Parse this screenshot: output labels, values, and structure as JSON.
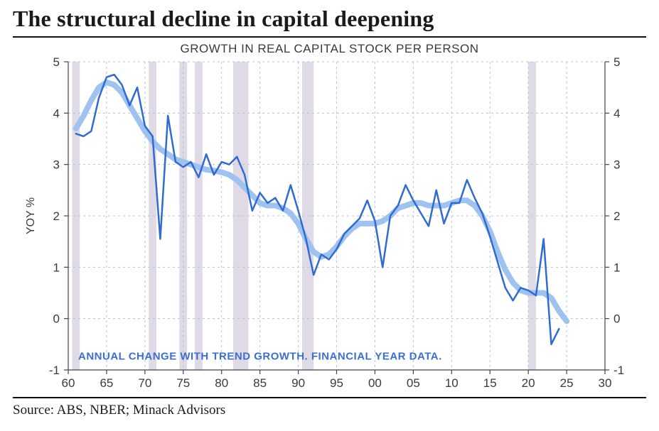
{
  "page": {
    "title": "The structural decline in capital deepening",
    "source": "Source: ABS, NBER; Minack Advisors"
  },
  "chart": {
    "type": "line",
    "subtitle": "GROWTH IN REAL CAPITAL STOCK PER PERSON",
    "y_axis_label": "YOY %",
    "legend_note": "ANNUAL CHANGE WITH TREND GROWTH.  FINANCIAL YEAR DATA.",
    "x": {
      "min": 60,
      "max": 30,
      "ticks": [
        60,
        65,
        70,
        75,
        80,
        85,
        90,
        95,
        0,
        5,
        10,
        15,
        20,
        25,
        30
      ],
      "tick_labels": [
        "60",
        "65",
        "70",
        "75",
        "80",
        "85",
        "90",
        "95",
        "00",
        "05",
        "10",
        "15",
        "20",
        "25",
        "30"
      ]
    },
    "y": {
      "min": -1,
      "max": 5,
      "ticks": [
        -1,
        0,
        1,
        2,
        3,
        4,
        5
      ]
    },
    "styling": {
      "background_color": "#ffffff",
      "grid_color": "#b8c2d1",
      "grid_dash": "3,4",
      "axis_color": "#444444",
      "recession_band_color": "#d9d3e0",
      "recession_band_opacity": 0.85,
      "trend_line_color": "#9ec3f0",
      "trend_line_width": 8,
      "series_line_color": "#2f6bd0",
      "series_line_width": 2.5,
      "tick_font_size": 17,
      "subtitle_font_size": 17,
      "note_font_size": 15,
      "title_font_size": 32
    },
    "recession_bands_x": [
      [
        60.5,
        61.5
      ],
      [
        70.5,
        71.5
      ],
      [
        74.5,
        75.5
      ],
      [
        76.5,
        77.5
      ],
      [
        81.5,
        83.5
      ],
      [
        90.5,
        92.0
      ],
      [
        120.0,
        121.0
      ]
    ],
    "series": {
      "x": [
        61,
        62,
        63,
        64,
        65,
        66,
        67,
        68,
        69,
        70,
        71,
        72,
        73,
        74,
        75,
        76,
        77,
        78,
        79,
        80,
        81,
        82,
        83,
        84,
        85,
        86,
        87,
        88,
        89,
        90,
        91,
        92,
        93,
        94,
        95,
        96,
        97,
        98,
        99,
        100,
        101,
        102,
        103,
        104,
        105,
        106,
        107,
        108,
        109,
        110,
        111,
        112,
        113,
        114,
        115,
        116,
        117,
        118,
        119,
        120,
        121,
        122,
        123,
        124
      ],
      "y": [
        3.6,
        3.55,
        3.65,
        4.3,
        4.7,
        4.75,
        4.55,
        4.15,
        4.5,
        3.75,
        3.55,
        1.55,
        3.95,
        3.05,
        2.95,
        3.05,
        2.75,
        3.2,
        2.8,
        3.05,
        3.0,
        3.15,
        2.8,
        2.1,
        2.45,
        2.25,
        2.35,
        2.1,
        2.6,
        2.1,
        1.55,
        0.85,
        1.25,
        1.15,
        1.35,
        1.65,
        1.8,
        1.95,
        2.3,
        1.9,
        1.0,
        2.0,
        2.2,
        2.6,
        2.3,
        2.05,
        1.8,
        2.5,
        1.85,
        2.25,
        2.25,
        2.7,
        2.35,
        2.05,
        1.6,
        1.1,
        0.6,
        0.35,
        0.6,
        0.55,
        0.45,
        1.55,
        -0.5,
        -0.2
      ]
    },
    "trend": {
      "x": [
        61,
        62,
        63,
        64,
        65,
        66,
        67,
        68,
        69,
        70,
        71,
        72,
        73,
        74,
        75,
        76,
        77,
        78,
        79,
        80,
        81,
        82,
        83,
        84,
        85,
        86,
        87,
        88,
        89,
        90,
        91,
        92,
        93,
        94,
        95,
        96,
        97,
        98,
        99,
        100,
        101,
        102,
        103,
        104,
        105,
        106,
        107,
        108,
        109,
        110,
        111,
        112,
        113,
        114,
        115,
        116,
        117,
        118,
        119,
        120,
        121,
        122,
        123,
        124,
        125
      ],
      "y": [
        3.7,
        3.95,
        4.25,
        4.5,
        4.6,
        4.55,
        4.4,
        4.15,
        3.9,
        3.65,
        3.45,
        3.3,
        3.2,
        3.1,
        3.05,
        3.0,
        2.95,
        2.9,
        2.88,
        2.85,
        2.8,
        2.7,
        2.55,
        2.4,
        2.25,
        2.2,
        2.2,
        2.15,
        2.05,
        1.85,
        1.55,
        1.3,
        1.2,
        1.25,
        1.4,
        1.6,
        1.75,
        1.85,
        1.85,
        1.85,
        1.9,
        2.0,
        2.15,
        2.2,
        2.25,
        2.25,
        2.2,
        2.2,
        2.2,
        2.25,
        2.3,
        2.3,
        2.2,
        2.0,
        1.7,
        1.3,
        0.95,
        0.7,
        0.55,
        0.5,
        0.5,
        0.5,
        0.4,
        0.15,
        -0.05
      ]
    }
  }
}
